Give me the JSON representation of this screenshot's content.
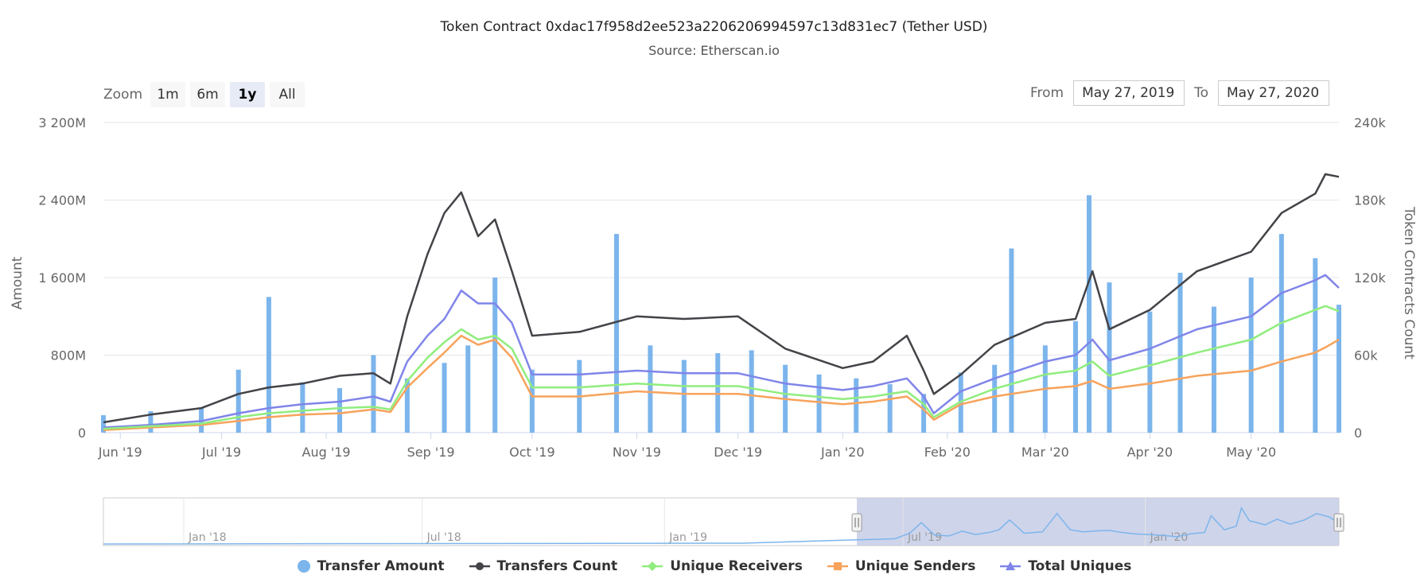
{
  "title": "Token Contract 0xdac17f958d2ee523a2206206994597c13d831ec7 (Tether USD)",
  "subtitle": "Source: Etherscan.io",
  "zoom": {
    "label": "Zoom",
    "buttons": [
      {
        "label": "1m",
        "active": false
      },
      {
        "label": "6m",
        "active": false
      },
      {
        "label": "1y",
        "active": true
      },
      {
        "label": "All",
        "active": false
      }
    ]
  },
  "range": {
    "from_label": "From",
    "from_value": "May 27, 2019",
    "to_label": "To",
    "to_value": "May 27, 2020"
  },
  "colors": {
    "transfer_amount": "#7cb5ec",
    "transfers_count": "#434348",
    "unique_receivers": "#90ed7d",
    "unique_senders": "#f7a35c",
    "total_uniques": "#8085e9",
    "navigator_mask": "#c6cde6",
    "grid": "#e6e6e6"
  },
  "legend": [
    {
      "label": "Transfer Amount",
      "symbol": "circle",
      "color_key": "transfer_amount"
    },
    {
      "label": "Transfers Count",
      "symbol": "circle-line",
      "color_key": "transfers_count"
    },
    {
      "label": "Unique Receivers",
      "symbol": "diamond-line",
      "color_key": "unique_receivers"
    },
    {
      "label": "Unique Senders",
      "symbol": "square-line",
      "color_key": "unique_senders"
    },
    {
      "label": "Total Uniques",
      "symbol": "triangle-line",
      "color_key": "total_uniques"
    }
  ],
  "navigator": {
    "x_labels": [
      "Jan '18",
      "Jul '18",
      "Jan '19",
      "Jul '19",
      "Jan '20"
    ],
    "selection": [
      "2019-05-27",
      "2020-05-27"
    ]
  },
  "chart_data": {
    "type": "bar",
    "title": "Token Contract 0xdac17f958d2ee523a2206206994597c13d831ec7 (Tether USD)",
    "subtitle": "Source: Etherscan.io",
    "x_labels": [
      "Jun '19",
      "Jul '19",
      "Aug '19",
      "Sep '19",
      "Oct '19",
      "Nov '19",
      "Dec '19",
      "Jan '20",
      "Feb '20",
      "Mar '20",
      "Apr '20",
      "May '20"
    ],
    "xlim": [
      "2019-05-27",
      "2020-05-27"
    ],
    "y_left": {
      "label": "Amount",
      "ylim": [
        0,
        3200
      ],
      "unit": "M",
      "ticks": [
        "0",
        "800M",
        "1 600M",
        "2 400M",
        "3 200M"
      ]
    },
    "y_right": {
      "label": "Token Contracts Count",
      "ylim": [
        0,
        240
      ],
      "unit": "k",
      "ticks": [
        "0",
        "60k",
        "120k",
        "180k",
        "240k"
      ]
    },
    "grid": true,
    "legend_position": "bottom",
    "series": [
      {
        "name": "Transfer Amount",
        "type": "column",
        "axis": "left",
        "unit": "M",
        "x": [
          "2019-05-27",
          "2019-06-10",
          "2019-06-25",
          "2019-07-06",
          "2019-07-15",
          "2019-07-25",
          "2019-08-05",
          "2019-08-15",
          "2019-08-25",
          "2019-09-05",
          "2019-09-12",
          "2019-09-20",
          "2019-10-01",
          "2019-10-15",
          "2019-10-26",
          "2019-11-05",
          "2019-11-15",
          "2019-11-25",
          "2019-12-05",
          "2019-12-15",
          "2019-12-25",
          "2020-01-05",
          "2020-01-15",
          "2020-01-25",
          "2020-02-05",
          "2020-02-15",
          "2020-02-20",
          "2020-03-01",
          "2020-03-10",
          "2020-03-14",
          "2020-03-20",
          "2020-04-01",
          "2020-04-10",
          "2020-04-20",
          "2020-05-01",
          "2020-05-10",
          "2020-05-20",
          "2020-05-27"
        ],
        "values": [
          180,
          220,
          260,
          650,
          1400,
          520,
          460,
          800,
          560,
          720,
          900,
          1600,
          650,
          750,
          2050,
          900,
          750,
          820,
          850,
          700,
          600,
          560,
          500,
          400,
          620,
          700,
          1900,
          900,
          1150,
          2450,
          1550,
          1250,
          1650,
          1300,
          1600,
          2050,
          1800,
          1320
        ]
      },
      {
        "name": "Transfers Count",
        "type": "line",
        "axis": "right",
        "unit": "k",
        "x": [
          "2019-05-27",
          "2019-06-10",
          "2019-06-25",
          "2019-07-06",
          "2019-07-15",
          "2019-07-25",
          "2019-08-05",
          "2019-08-15",
          "2019-08-20",
          "2019-08-25",
          "2019-08-31",
          "2019-09-05",
          "2019-09-10",
          "2019-09-15",
          "2019-09-20",
          "2019-09-25",
          "2019-10-01",
          "2019-10-15",
          "2019-11-01",
          "2019-11-15",
          "2019-12-01",
          "2019-12-15",
          "2020-01-01",
          "2020-01-10",
          "2020-01-20",
          "2020-01-25",
          "2020-01-28",
          "2020-02-05",
          "2020-02-15",
          "2020-03-01",
          "2020-03-10",
          "2020-03-15",
          "2020-03-20",
          "2020-04-01",
          "2020-04-15",
          "2020-05-01",
          "2020-05-10",
          "2020-05-20",
          "2020-05-23",
          "2020-05-27"
        ],
        "values": [
          8,
          14,
          19,
          30,
          35,
          38,
          44,
          46,
          38,
          90,
          138,
          170,
          186,
          152,
          165,
          125,
          75,
          78,
          90,
          88,
          90,
          65,
          50,
          55,
          75,
          48,
          30,
          45,
          68,
          85,
          88,
          125,
          80,
          95,
          125,
          140,
          170,
          185,
          200,
          198
        ]
      },
      {
        "name": "Unique Receivers",
        "type": "line",
        "axis": "right",
        "unit": "k",
        "x": [
          "2019-05-27",
          "2019-06-10",
          "2019-06-25",
          "2019-07-06",
          "2019-07-15",
          "2019-07-25",
          "2019-08-05",
          "2019-08-15",
          "2019-08-20",
          "2019-08-25",
          "2019-08-31",
          "2019-09-05",
          "2019-09-10",
          "2019-09-15",
          "2019-09-20",
          "2019-09-25",
          "2019-10-01",
          "2019-10-15",
          "2019-11-01",
          "2019-11-15",
          "2019-12-01",
          "2019-12-15",
          "2020-01-01",
          "2020-01-10",
          "2020-01-20",
          "2020-01-25",
          "2020-01-28",
          "2020-02-05",
          "2020-02-15",
          "2020-03-01",
          "2020-03-10",
          "2020-03-15",
          "2020-03-20",
          "2020-04-01",
          "2020-04-15",
          "2020-05-01",
          "2020-05-10",
          "2020-05-20",
          "2020-05-23",
          "2020-05-27"
        ],
        "values": [
          3,
          5,
          7,
          12,
          15,
          17,
          19,
          20,
          18,
          40,
          58,
          70,
          80,
          72,
          75,
          65,
          35,
          35,
          38,
          36,
          36,
          30,
          26,
          28,
          32,
          22,
          12,
          24,
          34,
          45,
          48,
          55,
          44,
          52,
          62,
          72,
          85,
          95,
          98,
          94
        ]
      },
      {
        "name": "Unique Senders",
        "type": "line",
        "axis": "right",
        "unit": "k",
        "x": [
          "2019-05-27",
          "2019-06-10",
          "2019-06-25",
          "2019-07-06",
          "2019-07-15",
          "2019-07-25",
          "2019-08-05",
          "2019-08-15",
          "2019-08-20",
          "2019-08-25",
          "2019-08-31",
          "2019-09-05",
          "2019-09-10",
          "2019-09-15",
          "2019-09-20",
          "2019-09-25",
          "2019-10-01",
          "2019-10-15",
          "2019-11-01",
          "2019-11-15",
          "2019-12-01",
          "2019-12-15",
          "2020-01-01",
          "2020-01-10",
          "2020-01-20",
          "2020-01-25",
          "2020-01-28",
          "2020-02-05",
          "2020-02-15",
          "2020-03-01",
          "2020-03-10",
          "2020-03-15",
          "2020-03-20",
          "2020-04-01",
          "2020-04-15",
          "2020-05-01",
          "2020-05-10",
          "2020-05-20",
          "2020-05-23",
          "2020-05-27"
        ],
        "values": [
          2,
          4,
          6,
          9,
          12,
          14,
          15,
          18,
          16,
          35,
          50,
          62,
          75,
          68,
          72,
          58,
          28,
          28,
          32,
          30,
          30,
          26,
          22,
          24,
          28,
          18,
          10,
          22,
          28,
          34,
          36,
          40,
          34,
          38,
          44,
          48,
          55,
          62,
          66,
          72
        ]
      },
      {
        "name": "Total Uniques",
        "type": "line",
        "axis": "right",
        "unit": "k",
        "x": [
          "2019-05-27",
          "2019-06-10",
          "2019-06-25",
          "2019-07-06",
          "2019-07-15",
          "2019-07-25",
          "2019-08-05",
          "2019-08-15",
          "2019-08-20",
          "2019-08-25",
          "2019-08-31",
          "2019-09-05",
          "2019-09-10",
          "2019-09-15",
          "2019-09-20",
          "2019-09-25",
          "2019-10-01",
          "2019-10-15",
          "2019-11-01",
          "2019-11-15",
          "2019-12-01",
          "2019-12-15",
          "2020-01-01",
          "2020-01-10",
          "2020-01-20",
          "2020-01-25",
          "2020-01-28",
          "2020-02-05",
          "2020-02-15",
          "2020-03-01",
          "2020-03-10",
          "2020-03-15",
          "2020-03-20",
          "2020-04-01",
          "2020-04-15",
          "2020-05-01",
          "2020-05-10",
          "2020-05-20",
          "2020-05-23",
          "2020-05-27"
        ],
        "values": [
          4,
          6,
          9,
          15,
          19,
          22,
          24,
          28,
          24,
          55,
          75,
          88,
          110,
          100,
          100,
          85,
          45,
          45,
          48,
          46,
          46,
          38,
          33,
          36,
          42,
          28,
          15,
          32,
          42,
          55,
          60,
          72,
          56,
          65,
          80,
          90,
          108,
          118,
          122,
          112
        ]
      }
    ]
  }
}
